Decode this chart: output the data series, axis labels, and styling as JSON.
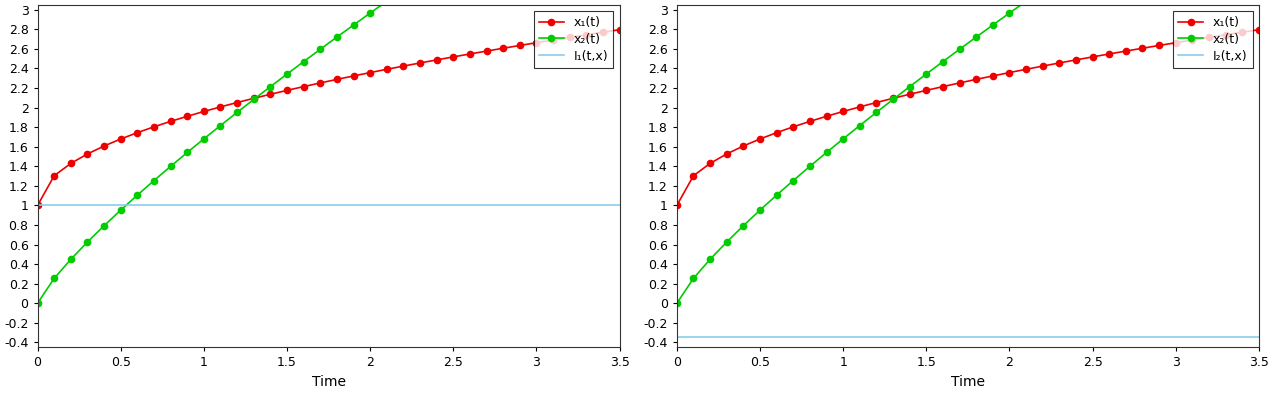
{
  "t_start": 0,
  "t_end": 3.5,
  "n_points": 36,
  "x1_init": 1.0,
  "x1_scale": 0.96,
  "x1_power": 0.5,
  "x2_init": 0.0,
  "x2_scale": 1.68,
  "x2_power": 0.82,
  "I1_value": 1.0,
  "I2_value": -0.35,
  "color_x1": "#ee0000",
  "color_x2": "#00cc00",
  "color_I": "#87ceeb",
  "marker": "o",
  "markersize": 4.5,
  "linewidth": 1.2,
  "ylim": [
    -0.45,
    3.05
  ],
  "yticks": [
    -0.4,
    -0.2,
    0,
    0.2,
    0.4,
    0.6,
    0.8,
    1.0,
    1.2,
    1.4,
    1.6,
    1.8,
    2.0,
    2.2,
    2.4,
    2.6,
    2.8,
    3.0
  ],
  "xlim": [
    0,
    3.5
  ],
  "xticks": [
    0,
    0.5,
    1,
    1.5,
    2,
    2.5,
    3,
    3.5
  ],
  "xlabel": "Time",
  "legend_labels_left": [
    "x₁(t)",
    "x₂(t)",
    "I₁(t,x)"
  ],
  "legend_labels_right": [
    "x₁(t)",
    "x₂(t)",
    "I₂(t,x)"
  ],
  "legend_loc": "upper right",
  "bg_color": "#ffffff",
  "plot_bg_color": "#ffffff",
  "font_size": 10,
  "tick_font_size": 9,
  "figwidth": 12.73,
  "figheight": 3.93
}
